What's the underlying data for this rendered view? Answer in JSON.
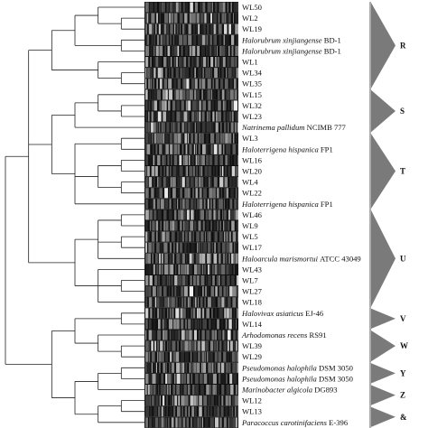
{
  "figure": {
    "rows": [
      {
        "name": "WL50",
        "genus": ""
      },
      {
        "name": "WL2",
        "genus": ""
      },
      {
        "name": "WL19",
        "genus": ""
      },
      {
        "name": "BD-1",
        "genus": "Halorubrum xinjiangense"
      },
      {
        "name": "BD-1",
        "genus": "Halorubrum xinjiangense"
      },
      {
        "name": "WL1",
        "genus": ""
      },
      {
        "name": "WL34",
        "genus": ""
      },
      {
        "name": "WL35",
        "genus": ""
      },
      {
        "name": "WL15",
        "genus": ""
      },
      {
        "name": "WL32",
        "genus": ""
      },
      {
        "name": "WL23",
        "genus": ""
      },
      {
        "name": "NCIMB 777",
        "genus": "Natrinema pallidum"
      },
      {
        "name": "WL3",
        "genus": ""
      },
      {
        "name": "FP1",
        "genus": "Haloterrigena hispanica"
      },
      {
        "name": "WL16",
        "genus": ""
      },
      {
        "name": "WL20",
        "genus": ""
      },
      {
        "name": "WL4",
        "genus": ""
      },
      {
        "name": "WL22",
        "genus": ""
      },
      {
        "name": "FP1",
        "genus": "Haloterrigena hispanica"
      },
      {
        "name": "WL46",
        "genus": ""
      },
      {
        "name": "WL9",
        "genus": ""
      },
      {
        "name": "WL5",
        "genus": ""
      },
      {
        "name": "WL17",
        "genus": ""
      },
      {
        "name": "ATCC 43049",
        "genus": "Haloarcula marismortui"
      },
      {
        "name": "WL43",
        "genus": ""
      },
      {
        "name": "WL7",
        "genus": ""
      },
      {
        "name": "WL27",
        "genus": ""
      },
      {
        "name": "WL18",
        "genus": ""
      },
      {
        "name": "EJ-46",
        "genus": "Halovivax asiaticus"
      },
      {
        "name": "WL14",
        "genus": ""
      },
      {
        "name": "RS91",
        "genus": "Arhodomonas recens"
      },
      {
        "name": "WL39",
        "genus": ""
      },
      {
        "name": "WL29",
        "genus": ""
      },
      {
        "name": "DSM 3050",
        "genus": "Pseudomonas halophila"
      },
      {
        "name": "DSM 3050",
        "genus": "Pseudomonas halophila"
      },
      {
        "name": "DG893",
        "genus": "Marinobacter algicola"
      },
      {
        "name": "WL12",
        "genus": ""
      },
      {
        "name": "WL13",
        "genus": ""
      },
      {
        "name": "E-396",
        "genus": "Paracoccus carotinifaciens"
      }
    ],
    "groups": [
      {
        "label": "R",
        "from": 0,
        "to": 7
      },
      {
        "label": "S",
        "from": 8,
        "to": 11
      },
      {
        "label": "T",
        "from": 12,
        "to": 18
      },
      {
        "label": "U",
        "from": 19,
        "to": 27
      },
      {
        "label": "V",
        "from": 28,
        "to": 29
      },
      {
        "label": "W",
        "from": 30,
        "to": 32
      },
      {
        "label": "Y",
        "from": 33,
        "to": 34
      },
      {
        "label": "Z",
        "from": 35,
        "to": 36
      },
      {
        "label": "&",
        "from": 37,
        "to": 38
      }
    ],
    "tree": {
      "c": [
        {
          "c": [
            {
              "c": [
                {
                  "c": [
                    {
                      "c": [
                        {
                          "l": 0
                        },
                        {
                          "c": [
                            {
                              "l": 1
                            },
                            {
                              "l": 2
                            }
                          ]
                        }
                      ]
                    },
                    {
                      "c": [
                        {
                          "l": 3
                        },
                        {
                          "l": 4
                        }
                      ]
                    }
                  ]
                },
                {
                  "c": [
                    {
                      "l": 5
                    },
                    {
                      "c": [
                        {
                          "l": 6
                        },
                        {
                          "l": 7
                        }
                      ]
                    }
                  ]
                }
              ]
            },
            {
              "c": [
                {
                  "c": [
                    {
                      "c": [
                        {
                          "l": 8
                        },
                        {
                          "c": [
                            {
                              "l": 9
                            },
                            {
                              "l": 10
                            }
                          ]
                        }
                      ]
                    },
                    {
                      "l": 11
                    }
                  ]
                },
                {
                  "c": [
                    {
                      "c": [
                        {
                          "l": 12
                        },
                        {
                          "l": 13
                        }
                      ]
                    },
                    {
                      "c": [
                        {
                          "c": [
                            {
                              "l": 14
                            },
                            {
                              "l": 15
                            }
                          ]
                        },
                        {
                          "c": [
                            {
                              "l": 16
                            },
                            {
                              "l": 17
                            }
                          ]
                        }
                      ]
                    },
                    {
                      "l": 18
                    }
                  ]
                }
              ]
            },
            {
              "c": [
                {
                  "c": [
                    {
                      "c": [
                        {
                          "l": 19
                        },
                        {
                          "l": 20
                        }
                      ]
                    },
                    {
                      "c": [
                        {
                          "l": 21
                        },
                        {
                          "l": 22
                        }
                      ]
                    },
                    {
                      "l": 23
                    }
                  ]
                },
                {
                  "c": [
                    {
                      "l": 24
                    },
                    {
                      "c": [
                        {
                          "l": 25
                        },
                        {
                          "l": 26
                        }
                      ]
                    },
                    {
                      "l": 27
                    }
                  ]
                }
              ]
            }
          ]
        },
        {
          "c": [
            {
              "c": [
                {
                  "c": [
                    {
                      "l": 28
                    },
                    {
                      "l": 29
                    }
                  ]
                },
                {
                  "c": [
                    {
                      "l": 30
                    },
                    {
                      "c": [
                        {
                          "l": 31
                        },
                        {
                          "l": 32
                        }
                      ]
                    }
                  ]
                }
              ]
            },
            {
              "c": [
                {
                  "c": [
                    {
                      "c": [
                        {
                          "l": 33
                        },
                        {
                          "l": 34
                        }
                      ]
                    },
                    {
                      "l": 35
                    }
                  ]
                },
                {
                  "c": [
                    {
                      "c": [
                        {
                          "l": 36
                        },
                        {
                          "l": 37
                        }
                      ]
                    },
                    {
                      "l": 38
                    }
                  ]
                }
              ]
            }
          ]
        }
      ]
    }
  }
}
